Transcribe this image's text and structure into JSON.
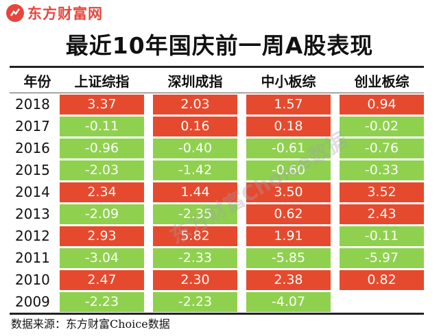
{
  "brand": {
    "logo_text": "东方财富网",
    "accent": "#e8453c"
  },
  "title": "最近10年国庆前一周A股表现",
  "table": {
    "headers": [
      "年份",
      "上证综指",
      "深圳成指",
      "中小板综",
      "创业板综"
    ],
    "colors": {
      "up": "#e64a2e",
      "down": "#8fd14f"
    },
    "rows": [
      {
        "year": "2018",
        "values": [
          "3.37",
          "2.03",
          "1.57",
          "0.94"
        ]
      },
      {
        "year": "2017",
        "values": [
          "-0.11",
          "0.16",
          "0.18",
          "-0.02"
        ]
      },
      {
        "year": "2016",
        "values": [
          "-0.96",
          "-0.40",
          "-0.61",
          "-0.76"
        ]
      },
      {
        "year": "2015",
        "values": [
          "-2.03",
          "-1.42",
          "-0.60",
          "-0.33"
        ]
      },
      {
        "year": "2014",
        "values": [
          "2.34",
          "1.44",
          "3.50",
          "3.52"
        ]
      },
      {
        "year": "2013",
        "values": [
          "-2.09",
          "-2.35",
          "0.62",
          "2.43"
        ]
      },
      {
        "year": "2012",
        "values": [
          "2.93",
          "5.82",
          "1.91",
          "-0.11"
        ]
      },
      {
        "year": "2011",
        "values": [
          "-3.04",
          "-2.33",
          "-5.85",
          "-5.97"
        ]
      },
      {
        "year": "2010",
        "values": [
          "2.47",
          "2.30",
          "2.38",
          "0.82"
        ]
      },
      {
        "year": "2009",
        "values": [
          "-2.23",
          "-2.23",
          "-4.07",
          ""
        ]
      }
    ]
  },
  "source": "数据来源：东方财富Choice数据",
  "watermark": "东方财富Choice数据"
}
